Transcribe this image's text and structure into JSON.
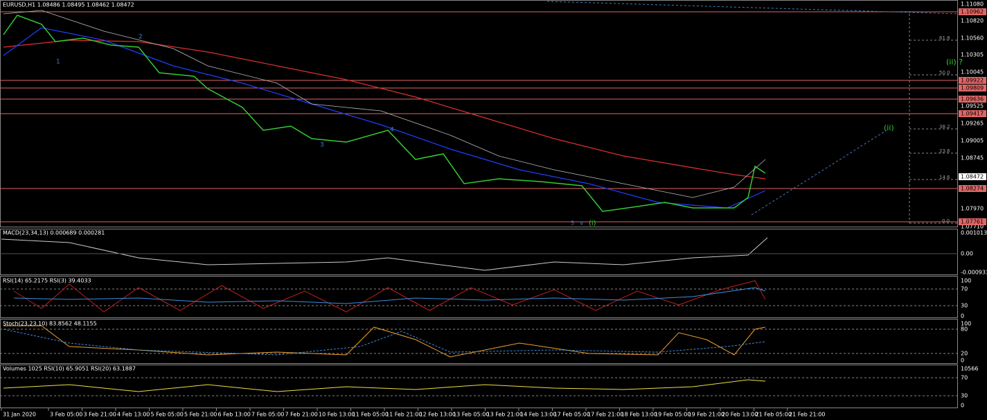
{
  "header": {
    "title": "EURUSD,H1  1.08486 1.08495 1.08462 1.08472"
  },
  "price_axis": {
    "labels": [
      "1.11080",
      "1.10820",
      "1.10560",
      "1.10305",
      "1.10045",
      "1.09785",
      "1.09525",
      "1.09265",
      "1.09005",
      "1.08745",
      "1.07970",
      "1.07710"
    ],
    "levels": [
      "1.10962",
      "1.09922",
      "1.09809",
      "1.09636",
      "1.09417",
      "1.08274",
      "1.07761"
    ],
    "current": "1.08472"
  },
  "fib_labels": [
    "61.8",
    "50.0",
    "38.2",
    "23.6",
    "14.6",
    "0.0"
  ],
  "wave_labels": [
    "(ii) ?",
    "(ii)",
    "1",
    "2",
    "3",
    "4",
    "5",
    "v",
    "(i)"
  ],
  "panels": [
    {
      "title": "MACD(23,34,13) 0.000689 0.000281",
      "axis": [
        "0.001013",
        "0.00",
        "-0.000933"
      ]
    },
    {
      "title": "RSI(14) 65.2175  RSI(3) 39.4033",
      "axis": [
        "100",
        "70",
        "30",
        "0"
      ]
    },
    {
      "title": "Stoch(23,23,10) 83.8562 48.1155",
      "axis": [
        "100",
        "80",
        "20",
        "0"
      ]
    },
    {
      "title": "Volumes 1025  RSI(10) 65.9051  RSI(20) 63.1887",
      "axis": [
        "10566",
        "70",
        "30",
        "0"
      ]
    }
  ],
  "dates": [
    "31 Jan 2020",
    "3 Feb 05:00",
    "3 Feb 21:00",
    "4 Feb 13:00",
    "5 Feb 05:00",
    "5 Feb 21:00",
    "6 Feb 13:00",
    "7 Feb 05:00",
    "7 Feb 21:00",
    "10 Feb 13:00",
    "11 Feb 05:00",
    "11 Feb 21:00",
    "12 Feb 13:00",
    "13 Feb 05:00",
    "13 Feb 21:00",
    "14 Feb 13:00",
    "17 Feb 05:00",
    "17 Feb 21:00",
    "18 Feb 13:00",
    "19 Feb 05:00",
    "19 Feb 21:00",
    "20 Feb 13:00",
    "21 Feb 05:00",
    "21 Feb 21:00"
  ]
}
